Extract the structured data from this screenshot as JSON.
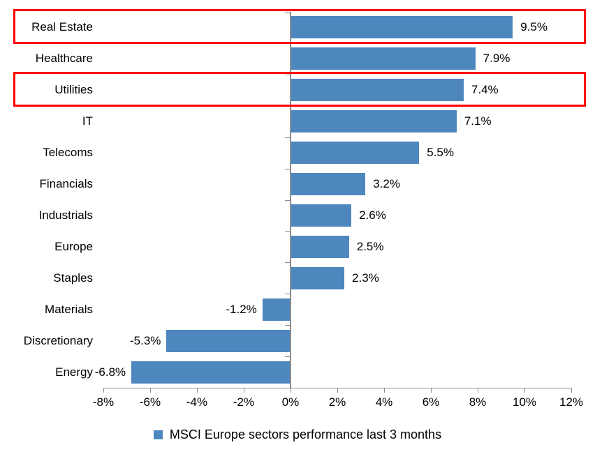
{
  "chart_data": {
    "type": "bar",
    "orientation": "horizontal",
    "title": "",
    "legend": "MSCI Europe sectors performance last 3 months",
    "legend_position": "bottom",
    "categories": [
      "Real Estate",
      "Healthcare",
      "Utilities",
      "IT",
      "Telecoms",
      "Financials",
      "Industrials",
      "Europe",
      "Staples",
      "Materials",
      "Discretionary",
      "Energy"
    ],
    "values": [
      9.5,
      7.9,
      7.4,
      7.1,
      5.5,
      3.2,
      2.6,
      2.5,
      2.3,
      -1.2,
      -5.3,
      -6.8
    ],
    "value_labels": [
      "9.5%",
      "7.9%",
      "7.4%",
      "7.1%",
      "5.5%",
      "3.2%",
      "2.6%",
      "2.5%",
      "2.3%",
      "-1.2%",
      "-5.3%",
      "-6.8%"
    ],
    "xlim": [
      -8,
      12
    ],
    "x_tick_values": [
      -8,
      -6,
      -4,
      -2,
      0,
      2,
      4,
      6,
      8,
      10,
      12
    ],
    "x_tick_labels": [
      "-8%",
      "-6%",
      "-4%",
      "-2%",
      "0%",
      "2%",
      "4%",
      "6%",
      "8%",
      "10%",
      "12%"
    ],
    "grid": false,
    "bar_color": "#4E87BE",
    "axis_color": "#8C8C8C",
    "text_color": "#000000",
    "highlight_box_color": "#FF0000",
    "highlighted_categories": [
      "Real Estate",
      "Utilities"
    ]
  }
}
